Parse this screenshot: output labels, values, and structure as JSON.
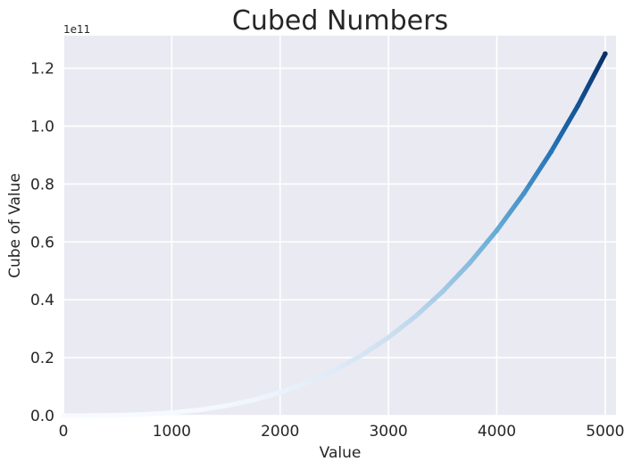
{
  "chart_data": {
    "type": "scatter",
    "title": "Cubed Numbers",
    "xlabel": "Value",
    "ylabel": "Cube of Value",
    "y_offset_text": "1e11",
    "xlim": [
      0,
      5100
    ],
    "ylim": [
      0,
      1.3125
    ],
    "y_scale_factor": 100000000000,
    "x_ticks": [
      0,
      1000,
      2000,
      3000,
      4000,
      5000
    ],
    "x_tick_labels": [
      "0",
      "1000",
      "2000",
      "3000",
      "4000",
      "5000"
    ],
    "y_ticks": [
      0.0,
      0.2,
      0.4,
      0.6,
      0.8,
      1.0,
      1.2
    ],
    "y_tick_labels": [
      "0.0",
      "0.2",
      "0.4",
      "0.6",
      "0.8",
      "1.0",
      "1.2"
    ],
    "grid": true,
    "colormap": "Blues",
    "background_color": "#eaeaf2",
    "grid_color": "#ffffff",
    "series": [
      {
        "x": [
          1,
          250,
          500,
          750,
          1000,
          1250,
          1500,
          1750,
          2000,
          2250,
          2500,
          2750,
          3000,
          3250,
          3500,
          3750,
          4000,
          4250,
          4500,
          4750,
          5000
        ],
        "y": [
          0.0,
          0.00015625,
          0.00125,
          0.00421875,
          0.01,
          0.01953125,
          0.03375,
          0.05359375,
          0.08,
          0.11390625,
          0.15625,
          0.20796875,
          0.27,
          0.34328125,
          0.42875,
          0.52734375,
          0.64,
          0.76765625,
          0.91125,
          1.07171875,
          1.25
        ]
      }
    ]
  }
}
